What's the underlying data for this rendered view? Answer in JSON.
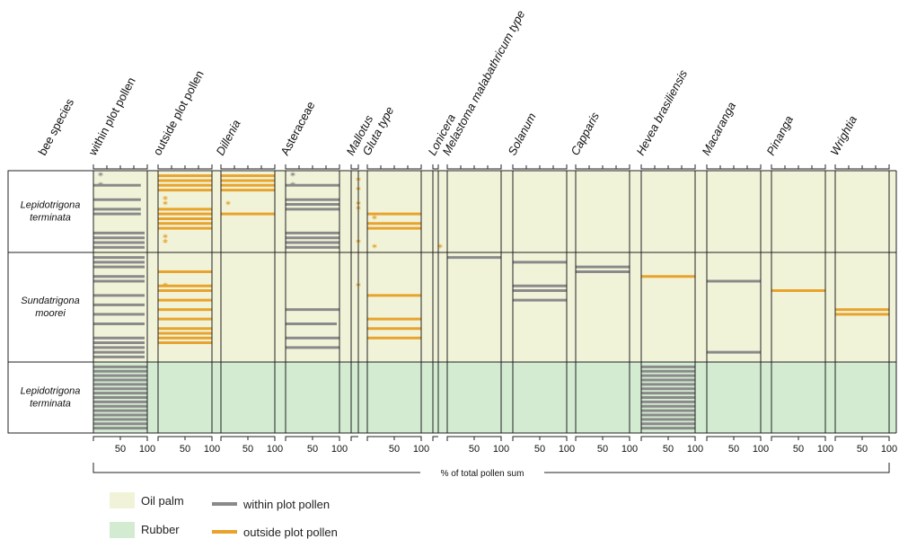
{
  "colors": {
    "oil_palm": "#f1f3d9",
    "rubber": "#d3ecd1",
    "within": "#8a8a8a",
    "outside": "#e8a32c",
    "grid": "#222222"
  },
  "legend": {
    "oil_palm": "Oil palm",
    "rubber": "Rubber",
    "within": "within plot pollen",
    "outside": "outside plot pollen"
  },
  "chart_data": {
    "type": "pollen-diagram",
    "xlabel": "% of total pollen sum",
    "xlim": [
      0,
      100
    ],
    "columns": [
      {
        "label": "bee species",
        "italic": false
      },
      {
        "label": "within plot pollen",
        "italic": false
      },
      {
        "label": "outside plot pollen",
        "italic": false
      },
      {
        "label": "Dillenia",
        "italic": true
      },
      {
        "label": "Asteraceae",
        "italic": false
      },
      {
        "label": "Mallotus",
        "italic": true
      },
      {
        "label": "Gluta type",
        "italic": true
      },
      {
        "label": "Lonicera",
        "italic": true
      },
      {
        "label": "Melastoma malabathricum type",
        "italic": true
      },
      {
        "label": "Solanum",
        "italic": true
      },
      {
        "label": "Capparis",
        "italic": true
      },
      {
        "label": "Hevea brasiliensis",
        "italic": true
      },
      {
        "label": "Macaranga",
        "italic": true
      },
      {
        "label": "Pinanga",
        "italic": true
      },
      {
        "label": "Wrightia",
        "italic": true
      }
    ],
    "tick_labels": [
      "50",
      "100"
    ],
    "groups": [
      {
        "species": [
          "Lepidotrigona",
          "terminata"
        ],
        "land_use": "oil_palm",
        "samples": 16
      },
      {
        "species": [
          "Sundatrigona",
          "moorei"
        ],
        "land_use": "oil_palm",
        "samples": 22
      },
      {
        "species": [
          "Lepidotrigona",
          "terminata"
        ],
        "land_use": "rubber",
        "samples": 15
      }
    ],
    "series": [
      {
        "column": "within plot pollen",
        "kind": "within",
        "bars": [
          [
            0,
            3,
            88
          ],
          [
            0,
            6,
            88
          ],
          [
            0,
            8,
            88
          ],
          [
            0,
            9,
            88
          ],
          [
            0,
            13,
            95
          ],
          [
            0,
            14,
            95
          ],
          [
            0,
            15,
            95
          ],
          [
            0,
            16,
            95
          ],
          [
            1,
            1,
            95
          ],
          [
            1,
            2,
            95
          ],
          [
            1,
            3,
            95
          ],
          [
            1,
            5,
            95
          ],
          [
            1,
            6,
            95
          ],
          [
            1,
            9,
            95
          ],
          [
            1,
            11,
            95
          ],
          [
            1,
            13,
            95
          ],
          [
            1,
            15,
            95
          ],
          [
            1,
            18,
            95
          ],
          [
            1,
            19,
            95
          ],
          [
            1,
            20,
            95
          ],
          [
            1,
            21,
            95
          ],
          [
            1,
            22,
            95
          ],
          [
            2,
            1,
            100
          ],
          [
            2,
            2,
            100
          ],
          [
            2,
            3,
            100
          ],
          [
            2,
            4,
            100
          ],
          [
            2,
            5,
            100
          ],
          [
            2,
            6,
            100
          ],
          [
            2,
            7,
            100
          ],
          [
            2,
            8,
            100
          ],
          [
            2,
            9,
            100
          ],
          [
            2,
            10,
            100
          ],
          [
            2,
            11,
            100
          ],
          [
            2,
            12,
            100
          ],
          [
            2,
            13,
            100
          ],
          [
            2,
            14,
            100
          ],
          [
            2,
            15,
            100
          ]
        ],
        "stars": [
          [
            0,
            1
          ],
          [
            0,
            3
          ]
        ]
      },
      {
        "column": "outside plot pollen",
        "kind": "outside",
        "bars": [
          [
            0,
            1,
            100
          ],
          [
            0,
            2,
            100
          ],
          [
            0,
            3,
            100
          ],
          [
            0,
            4,
            100
          ],
          [
            0,
            8,
            100
          ],
          [
            0,
            9,
            100
          ],
          [
            0,
            10,
            100
          ],
          [
            0,
            11,
            100
          ],
          [
            0,
            12,
            100
          ],
          [
            1,
            4,
            100
          ],
          [
            1,
            7,
            100
          ],
          [
            1,
            8,
            100
          ],
          [
            1,
            10,
            100
          ],
          [
            1,
            12,
            100
          ],
          [
            1,
            14,
            100
          ],
          [
            1,
            16,
            100
          ],
          [
            1,
            17,
            100
          ],
          [
            1,
            18,
            100
          ],
          [
            1,
            19,
            100
          ]
        ],
        "stars": [
          [
            0,
            6
          ],
          [
            0,
            7
          ],
          [
            0,
            14
          ],
          [
            0,
            15
          ],
          [
            1,
            7
          ]
        ]
      },
      {
        "column": "Dillenia",
        "kind": "outside",
        "bars": [
          [
            0,
            1,
            100
          ],
          [
            0,
            2,
            100
          ],
          [
            0,
            3,
            100
          ],
          [
            0,
            4,
            100
          ],
          [
            0,
            9,
            100
          ]
        ],
        "stars": [
          [
            0,
            7
          ]
        ]
      },
      {
        "column": "Asteraceae",
        "kind": "within",
        "bars": [
          [
            0,
            3,
            100
          ],
          [
            0,
            6,
            100
          ],
          [
            0,
            7,
            100
          ],
          [
            0,
            8,
            100
          ],
          [
            0,
            13,
            100
          ],
          [
            0,
            14,
            100
          ],
          [
            0,
            15,
            100
          ],
          [
            0,
            16,
            100
          ],
          [
            1,
            12,
            100
          ],
          [
            1,
            15,
            95
          ],
          [
            1,
            18,
            100
          ],
          [
            1,
            20,
            100
          ]
        ],
        "stars": [
          [
            0,
            1
          ],
          [
            0,
            3
          ]
        ]
      },
      {
        "column": "Mallotus",
        "kind": "outside",
        "bars": [],
        "stars": [
          [
            0,
            2
          ],
          [
            0,
            4
          ],
          [
            0,
            7
          ],
          [
            0,
            8
          ],
          [
            0,
            15
          ],
          [
            1,
            7
          ]
        ]
      },
      {
        "column": "Gluta type",
        "kind": "outside",
        "bars": [
          [
            0,
            9,
            100
          ],
          [
            0,
            11,
            100
          ],
          [
            0,
            12,
            100
          ],
          [
            1,
            9,
            100
          ],
          [
            1,
            14,
            100
          ],
          [
            1,
            16,
            100
          ],
          [
            1,
            18,
            100
          ]
        ],
        "stars": [
          [
            0,
            10
          ],
          [
            0,
            16
          ]
        ]
      },
      {
        "column": "Lonicera",
        "kind": "outside",
        "bars": [],
        "stars": [
          [
            0,
            16
          ]
        ]
      },
      {
        "column": "Melastoma malabathricum type",
        "kind": "within",
        "bars": [
          [
            1,
            1,
            100
          ]
        ],
        "stars": []
      },
      {
        "column": "Solanum",
        "kind": "within",
        "bars": [
          [
            1,
            2,
            100
          ],
          [
            1,
            7,
            100
          ],
          [
            1,
            8,
            100
          ],
          [
            1,
            10,
            100
          ]
        ],
        "stars": []
      },
      {
        "column": "Capparis",
        "kind": "within",
        "bars": [
          [
            1,
            3,
            100
          ],
          [
            1,
            4,
            100
          ]
        ],
        "stars": []
      },
      {
        "column": "Hevea brasiliensis",
        "kind": "outside",
        "bars": [
          [
            1,
            5,
            100
          ]
        ],
        "stars": []
      },
      {
        "column": "Hevea brasiliensis",
        "kind": "within",
        "bars": [
          [
            2,
            1,
            100
          ],
          [
            2,
            2,
            100
          ],
          [
            2,
            3,
            100
          ],
          [
            2,
            4,
            100
          ],
          [
            2,
            5,
            100
          ],
          [
            2,
            6,
            100
          ],
          [
            2,
            7,
            100
          ],
          [
            2,
            8,
            100
          ],
          [
            2,
            9,
            100
          ],
          [
            2,
            10,
            100
          ],
          [
            2,
            11,
            100
          ],
          [
            2,
            12,
            100
          ],
          [
            2,
            13,
            100
          ],
          [
            2,
            14,
            100
          ],
          [
            2,
            15,
            100
          ]
        ],
        "stars": []
      },
      {
        "column": "Macaranga",
        "kind": "within",
        "bars": [
          [
            1,
            6,
            100
          ],
          [
            1,
            21,
            100
          ]
        ],
        "stars": []
      },
      {
        "column": "Pinanga",
        "kind": "outside",
        "bars": [
          [
            1,
            8,
            100
          ]
        ],
        "stars": []
      },
      {
        "column": "Wrightia",
        "kind": "outside",
        "bars": [
          [
            1,
            12,
            100
          ],
          [
            1,
            13,
            100
          ]
        ],
        "stars": []
      }
    ]
  }
}
